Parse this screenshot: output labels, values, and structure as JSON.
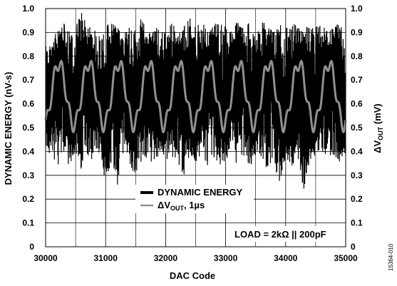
{
  "chart_data": {
    "type": "line",
    "title": "",
    "xlabel": "DAC Code",
    "ylabel": "DYNAMIC ENERGY (nV-s)",
    "y2label_prefix": "ΔV",
    "y2label_sub": "OUT",
    "y2label_suffix": " (mV)",
    "xlim": [
      30000,
      35000
    ],
    "ylim": [
      0,
      1.0
    ],
    "y2lim": [
      0,
      1.0
    ],
    "xticks": [
      "30000",
      "31000",
      "32000",
      "33000",
      "34000",
      "35000"
    ],
    "yticks": [
      "0",
      "0.1",
      "0.2",
      "0.3",
      "0.4",
      "0.5",
      "0.6",
      "0.7",
      "0.8",
      "0.9",
      "1.0"
    ],
    "y2ticks": [
      "0",
      "0.1",
      "0.2",
      "0.3",
      "0.4",
      "0.5",
      "0.6",
      "0.7",
      "0.8",
      "0.9",
      "1.0"
    ],
    "grid": true,
    "legend_position": "bottom-center",
    "legend": {
      "energy": "DYNAMIC ENERGY",
      "vout_prefix": "ΔV",
      "vout_sub": "OUT",
      "vout_suffix": ", 1µs"
    },
    "annotation": "LOAD = 2kΩ || 200pF",
    "figure_id": "15364-010",
    "colors": {
      "energy": "#000000",
      "vout": "#909090",
      "grid": "#000000"
    },
    "series": [
      {
        "name": "DYNAMIC ENERGY",
        "x": [
          30000,
          30100,
          30200,
          30300,
          30400,
          30500,
          30600,
          30700,
          30800,
          30900,
          31000,
          31100,
          31200,
          31300,
          31400,
          31500,
          31600,
          31700,
          31800,
          31900,
          32000,
          32100,
          32200,
          32300,
          32400,
          32500,
          32600,
          32700,
          32800,
          32900,
          33000,
          33100,
          33200,
          33300,
          33400,
          33500,
          33600,
          33700,
          33800,
          33900,
          34000,
          34100,
          34200,
          34300,
          34400,
          34500,
          34600,
          34700,
          34800,
          34900,
          35000
        ],
        "upper": [
          0.84,
          0.88,
          0.9,
          0.94,
          0.9,
          0.92,
          0.98,
          0.94,
          0.92,
          0.9,
          0.92,
          0.95,
          0.92,
          0.9,
          0.95,
          0.92,
          0.96,
          0.9,
          0.92,
          0.94,
          0.92,
          0.95,
          0.9,
          0.92,
          0.96,
          0.92,
          0.95,
          0.9,
          0.93,
          0.95,
          0.92,
          0.9,
          0.95,
          0.92,
          0.94,
          0.9,
          0.95,
          0.92,
          0.9,
          0.94,
          0.92,
          0.95,
          0.92,
          0.9,
          0.95,
          0.92,
          0.94,
          0.9,
          0.92,
          0.94,
          0.86
        ],
        "lower": [
          0.42,
          0.38,
          0.3,
          0.38,
          0.34,
          0.4,
          0.32,
          0.38,
          0.35,
          0.4,
          0.27,
          0.36,
          0.24,
          0.38,
          0.34,
          0.3,
          0.36,
          0.38,
          0.32,
          0.4,
          0.36,
          0.38,
          0.34,
          0.3,
          0.38,
          0.35,
          0.4,
          0.32,
          0.38,
          0.34,
          0.36,
          0.39,
          0.32,
          0.38,
          0.34,
          0.37,
          0.38,
          0.32,
          0.36,
          0.26,
          0.38,
          0.34,
          0.38,
          0.24,
          0.36,
          0.38,
          0.4,
          0.35,
          0.38,
          0.36,
          0.4
        ]
      },
      {
        "name": "ΔVOUT, 1µs",
        "period": 500,
        "center": 0.64,
        "amplitude": 0.13,
        "minor_amplitude": 0.03,
        "ylim_axis": "y2"
      }
    ]
  }
}
